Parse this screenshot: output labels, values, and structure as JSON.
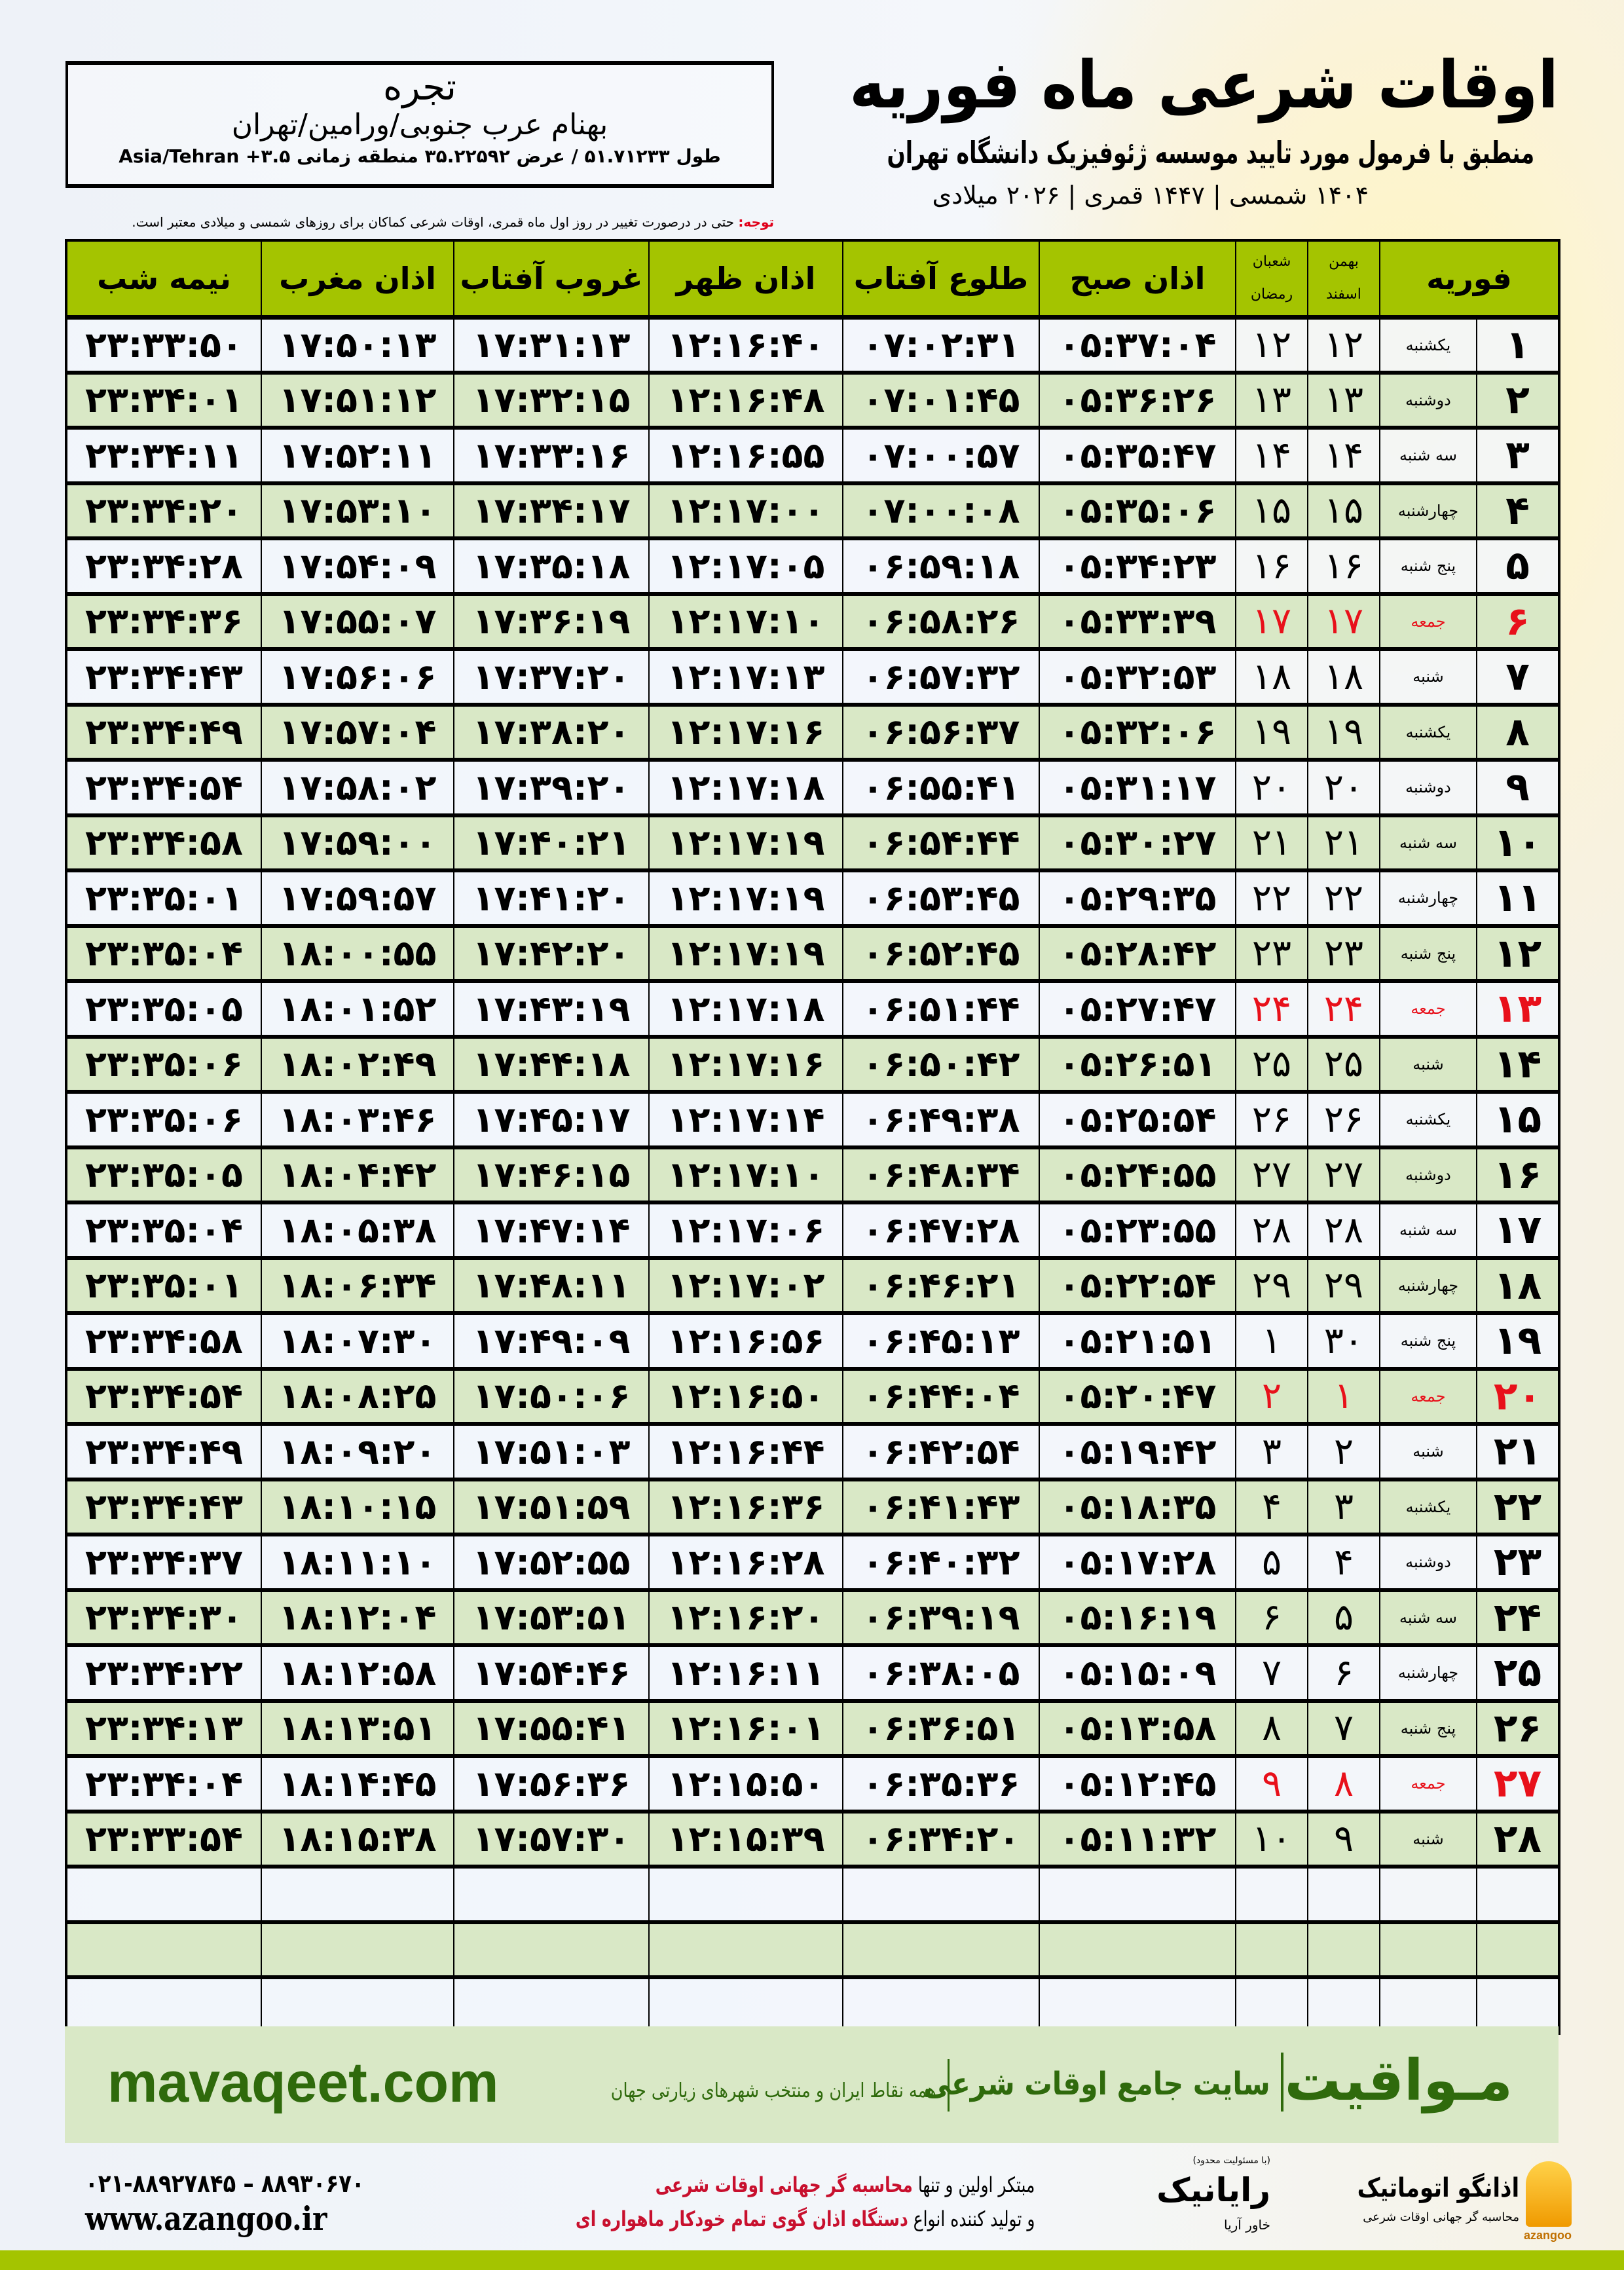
{
  "header": {
    "title": "اوقات شرعی ماه فوریه",
    "subtitle": "منطبق با فرمول مورد تایید موسسه ژئوفیزیک دانشگاه تهران",
    "dateline": "۱۴۰۴ شمسی | ۱۴۴۷ قمری | ۲۰۲۶ میلادی"
  },
  "location": {
    "city": "تجره",
    "address": "بهنام عرب جنوبی/ورامین/تهران",
    "coords": "طول ۵۱.۷۱۲۳۳ / عرض ۳۵.۲۲۵۹۲ منطقه زمانی ۳.۵+ Asia/Tehran"
  },
  "note": {
    "label": "توجه:",
    "text": " حتی در درصورت تغییر در روز اول ماه قمری، اوقات شرعی کماکان برای روزهای شمسی و میلادی معتبر است."
  },
  "table": {
    "headers": {
      "month": "فوریه",
      "solar_1": "بهمن",
      "solar_2": "اسفند",
      "lunar_1": "شعبان",
      "lunar_2": "رمضان",
      "fajr": "اذان صبح",
      "sunrise": "طلوع آفتاب",
      "dhuhr": "اذان ظهر",
      "sunset": "غروب آفتاب",
      "maghrib": "اذان مغرب",
      "midnight": "نیمه شب"
    },
    "friday_color": "#e8101a",
    "rows": [
      {
        "date": "۱",
        "weekday": "یکشنبه",
        "solar": "۱۲",
        "lunar": "۱۲",
        "fajr": "۰۵:۳۷:۰۴",
        "sunrise": "۰۷:۰۲:۳۱",
        "dhuhr": "۱۲:۱۶:۴۰",
        "sunset": "۱۷:۳۱:۱۳",
        "maghrib": "۱۷:۵۰:۱۳",
        "midnight": "۲۳:۳۳:۵۰",
        "friday": false
      },
      {
        "date": "۲",
        "weekday": "دوشنبه",
        "solar": "۱۳",
        "lunar": "۱۳",
        "fajr": "۰۵:۳۶:۲۶",
        "sunrise": "۰۷:۰۱:۴۵",
        "dhuhr": "۱۲:۱۶:۴۸",
        "sunset": "۱۷:۳۲:۱۵",
        "maghrib": "۱۷:۵۱:۱۲",
        "midnight": "۲۳:۳۴:۰۱",
        "friday": false
      },
      {
        "date": "۳",
        "weekday": "سه شنبه",
        "solar": "۱۴",
        "lunar": "۱۴",
        "fajr": "۰۵:۳۵:۴۷",
        "sunrise": "۰۷:۰۰:۵۷",
        "dhuhr": "۱۲:۱۶:۵۵",
        "sunset": "۱۷:۳۳:۱۶",
        "maghrib": "۱۷:۵۲:۱۱",
        "midnight": "۲۳:۳۴:۱۱",
        "friday": false
      },
      {
        "date": "۴",
        "weekday": "چهارشنبه",
        "solar": "۱۵",
        "lunar": "۱۵",
        "fajr": "۰۵:۳۵:۰۶",
        "sunrise": "۰۷:۰۰:۰۸",
        "dhuhr": "۱۲:۱۷:۰۰",
        "sunset": "۱۷:۳۴:۱۷",
        "maghrib": "۱۷:۵۳:۱۰",
        "midnight": "۲۳:۳۴:۲۰",
        "friday": false
      },
      {
        "date": "۵",
        "weekday": "پنج شنبه",
        "solar": "۱۶",
        "lunar": "۱۶",
        "fajr": "۰۵:۳۴:۲۳",
        "sunrise": "۰۶:۵۹:۱۸",
        "dhuhr": "۱۲:۱۷:۰۵",
        "sunset": "۱۷:۳۵:۱۸",
        "maghrib": "۱۷:۵۴:۰۹",
        "midnight": "۲۳:۳۴:۲۸",
        "friday": false
      },
      {
        "date": "۶",
        "weekday": "جمعه",
        "solar": "۱۷",
        "lunar": "۱۷",
        "fajr": "۰۵:۳۳:۳۹",
        "sunrise": "۰۶:۵۸:۲۶",
        "dhuhr": "۱۲:۱۷:۱۰",
        "sunset": "۱۷:۳۶:۱۹",
        "maghrib": "۱۷:۵۵:۰۷",
        "midnight": "۲۳:۳۴:۳۶",
        "friday": true
      },
      {
        "date": "۷",
        "weekday": "شنبه",
        "solar": "۱۸",
        "lunar": "۱۸",
        "fajr": "۰۵:۳۲:۵۳",
        "sunrise": "۰۶:۵۷:۳۲",
        "dhuhr": "۱۲:۱۷:۱۳",
        "sunset": "۱۷:۳۷:۲۰",
        "maghrib": "۱۷:۵۶:۰۶",
        "midnight": "۲۳:۳۴:۴۳",
        "friday": false
      },
      {
        "date": "۸",
        "weekday": "یکشنبه",
        "solar": "۱۹",
        "lunar": "۱۹",
        "fajr": "۰۵:۳۲:۰۶",
        "sunrise": "۰۶:۵۶:۳۷",
        "dhuhr": "۱۲:۱۷:۱۶",
        "sunset": "۱۷:۳۸:۲۰",
        "maghrib": "۱۷:۵۷:۰۴",
        "midnight": "۲۳:۳۴:۴۹",
        "friday": false
      },
      {
        "date": "۹",
        "weekday": "دوشنبه",
        "solar": "۲۰",
        "lunar": "۲۰",
        "fajr": "۰۵:۳۱:۱۷",
        "sunrise": "۰۶:۵۵:۴۱",
        "dhuhr": "۱۲:۱۷:۱۸",
        "sunset": "۱۷:۳۹:۲۰",
        "maghrib": "۱۷:۵۸:۰۲",
        "midnight": "۲۳:۳۴:۵۴",
        "friday": false
      },
      {
        "date": "۱۰",
        "weekday": "سه شنبه",
        "solar": "۲۱",
        "lunar": "۲۱",
        "fajr": "۰۵:۳۰:۲۷",
        "sunrise": "۰۶:۵۴:۴۴",
        "dhuhr": "۱۲:۱۷:۱۹",
        "sunset": "۱۷:۴۰:۲۱",
        "maghrib": "۱۷:۵۹:۰۰",
        "midnight": "۲۳:۳۴:۵۸",
        "friday": false
      },
      {
        "date": "۱۱",
        "weekday": "چهارشنبه",
        "solar": "۲۲",
        "lunar": "۲۲",
        "fajr": "۰۵:۲۹:۳۵",
        "sunrise": "۰۶:۵۳:۴۵",
        "dhuhr": "۱۲:۱۷:۱۹",
        "sunset": "۱۷:۴۱:۲۰",
        "maghrib": "۱۷:۵۹:۵۷",
        "midnight": "۲۳:۳۵:۰۱",
        "friday": false
      },
      {
        "date": "۱۲",
        "weekday": "پنج شنبه",
        "solar": "۲۳",
        "lunar": "۲۳",
        "fajr": "۰۵:۲۸:۴۲",
        "sunrise": "۰۶:۵۲:۴۵",
        "dhuhr": "۱۲:۱۷:۱۹",
        "sunset": "۱۷:۴۲:۲۰",
        "maghrib": "۱۸:۰۰:۵۵",
        "midnight": "۲۳:۳۵:۰۴",
        "friday": false
      },
      {
        "date": "۱۳",
        "weekday": "جمعه",
        "solar": "۲۴",
        "lunar": "۲۴",
        "fajr": "۰۵:۲۷:۴۷",
        "sunrise": "۰۶:۵۱:۴۴",
        "dhuhr": "۱۲:۱۷:۱۸",
        "sunset": "۱۷:۴۳:۱۹",
        "maghrib": "۱۸:۰۱:۵۲",
        "midnight": "۲۳:۳۵:۰۵",
        "friday": true
      },
      {
        "date": "۱۴",
        "weekday": "شنبه",
        "solar": "۲۵",
        "lunar": "۲۵",
        "fajr": "۰۵:۲۶:۵۱",
        "sunrise": "۰۶:۵۰:۴۲",
        "dhuhr": "۱۲:۱۷:۱۶",
        "sunset": "۱۷:۴۴:۱۸",
        "maghrib": "۱۸:۰۲:۴۹",
        "midnight": "۲۳:۳۵:۰۶",
        "friday": false
      },
      {
        "date": "۱۵",
        "weekday": "یکشنبه",
        "solar": "۲۶",
        "lunar": "۲۶",
        "fajr": "۰۵:۲۵:۵۴",
        "sunrise": "۰۶:۴۹:۳۸",
        "dhuhr": "۱۲:۱۷:۱۴",
        "sunset": "۱۷:۴۵:۱۷",
        "maghrib": "۱۸:۰۳:۴۶",
        "midnight": "۲۳:۳۵:۰۶",
        "friday": false
      },
      {
        "date": "۱۶",
        "weekday": "دوشنبه",
        "solar": "۲۷",
        "lunar": "۲۷",
        "fajr": "۰۵:۲۴:۵۵",
        "sunrise": "۰۶:۴۸:۳۴",
        "dhuhr": "۱۲:۱۷:۱۰",
        "sunset": "۱۷:۴۶:۱۵",
        "maghrib": "۱۸:۰۴:۴۲",
        "midnight": "۲۳:۳۵:۰۵",
        "friday": false
      },
      {
        "date": "۱۷",
        "weekday": "سه شنبه",
        "solar": "۲۸",
        "lunar": "۲۸",
        "fajr": "۰۵:۲۳:۵۵",
        "sunrise": "۰۶:۴۷:۲۸",
        "dhuhr": "۱۲:۱۷:۰۶",
        "sunset": "۱۷:۴۷:۱۴",
        "maghrib": "۱۸:۰۵:۳۸",
        "midnight": "۲۳:۳۵:۰۴",
        "friday": false
      },
      {
        "date": "۱۸",
        "weekday": "چهارشنبه",
        "solar": "۲۹",
        "lunar": "۲۹",
        "fajr": "۰۵:۲۲:۵۴",
        "sunrise": "۰۶:۴۶:۲۱",
        "dhuhr": "۱۲:۱۷:۰۲",
        "sunset": "۱۷:۴۸:۱۱",
        "maghrib": "۱۸:۰۶:۳۴",
        "midnight": "۲۳:۳۵:۰۱",
        "friday": false
      },
      {
        "date": "۱۹",
        "weekday": "پنج شنبه",
        "solar": "۳۰",
        "lunar": "۱",
        "fajr": "۰۵:۲۱:۵۱",
        "sunrise": "۰۶:۴۵:۱۳",
        "dhuhr": "۱۲:۱۶:۵۶",
        "sunset": "۱۷:۴۹:۰۹",
        "maghrib": "۱۸:۰۷:۳۰",
        "midnight": "۲۳:۳۴:۵۸",
        "friday": false
      },
      {
        "date": "۲۰",
        "weekday": "جمعه",
        "solar": "۱",
        "lunar": "۲",
        "fajr": "۰۵:۲۰:۴۷",
        "sunrise": "۰۶:۴۴:۰۴",
        "dhuhr": "۱۲:۱۶:۵۰",
        "sunset": "۱۷:۵۰:۰۶",
        "maghrib": "۱۸:۰۸:۲۵",
        "midnight": "۲۳:۳۴:۵۴",
        "friday": true
      },
      {
        "date": "۲۱",
        "weekday": "شنبه",
        "solar": "۲",
        "lunar": "۳",
        "fajr": "۰۵:۱۹:۴۲",
        "sunrise": "۰۶:۴۲:۵۴",
        "dhuhr": "۱۲:۱۶:۴۴",
        "sunset": "۱۷:۵۱:۰۳",
        "maghrib": "۱۸:۰۹:۲۰",
        "midnight": "۲۳:۳۴:۴۹",
        "friday": false
      },
      {
        "date": "۲۲",
        "weekday": "یکشنبه",
        "solar": "۳",
        "lunar": "۴",
        "fajr": "۰۵:۱۸:۳۵",
        "sunrise": "۰۶:۴۱:۴۳",
        "dhuhr": "۱۲:۱۶:۳۶",
        "sunset": "۱۷:۵۱:۵۹",
        "maghrib": "۱۸:۱۰:۱۵",
        "midnight": "۲۳:۳۴:۴۳",
        "friday": false
      },
      {
        "date": "۲۳",
        "weekday": "دوشنبه",
        "solar": "۴",
        "lunar": "۵",
        "fajr": "۰۵:۱۷:۲۸",
        "sunrise": "۰۶:۴۰:۳۲",
        "dhuhr": "۱۲:۱۶:۲۸",
        "sunset": "۱۷:۵۲:۵۵",
        "maghrib": "۱۸:۱۱:۱۰",
        "midnight": "۲۳:۳۴:۳۷",
        "friday": false
      },
      {
        "date": "۲۴",
        "weekday": "سه شنبه",
        "solar": "۵",
        "lunar": "۶",
        "fajr": "۰۵:۱۶:۱۹",
        "sunrise": "۰۶:۳۹:۱۹",
        "dhuhr": "۱۲:۱۶:۲۰",
        "sunset": "۱۷:۵۳:۵۱",
        "maghrib": "۱۸:۱۲:۰۴",
        "midnight": "۲۳:۳۴:۳۰",
        "friday": false
      },
      {
        "date": "۲۵",
        "weekday": "چهارشنبه",
        "solar": "۶",
        "lunar": "۷",
        "fajr": "۰۵:۱۵:۰۹",
        "sunrise": "۰۶:۳۸:۰۵",
        "dhuhr": "۱۲:۱۶:۱۱",
        "sunset": "۱۷:۵۴:۴۶",
        "maghrib": "۱۸:۱۲:۵۸",
        "midnight": "۲۳:۳۴:۲۲",
        "friday": false
      },
      {
        "date": "۲۶",
        "weekday": "پنج شنبه",
        "solar": "۷",
        "lunar": "۸",
        "fajr": "۰۵:۱۳:۵۸",
        "sunrise": "۰۶:۳۶:۵۱",
        "dhuhr": "۱۲:۱۶:۰۱",
        "sunset": "۱۷:۵۵:۴۱",
        "maghrib": "۱۸:۱۳:۵۱",
        "midnight": "۲۳:۳۴:۱۳",
        "friday": false
      },
      {
        "date": "۲۷",
        "weekday": "جمعه",
        "solar": "۸",
        "lunar": "۹",
        "fajr": "۰۵:۱۲:۴۵",
        "sunrise": "۰۶:۳۵:۳۶",
        "dhuhr": "۱۲:۱۵:۵۰",
        "sunset": "۱۷:۵۶:۳۶",
        "maghrib": "۱۸:۱۴:۴۵",
        "midnight": "۲۳:۳۴:۰۴",
        "friday": true
      },
      {
        "date": "۲۸",
        "weekday": "شنبه",
        "solar": "۹",
        "lunar": "۱۰",
        "fajr": "۰۵:۱۱:۳۲",
        "sunrise": "۰۶:۳۴:۲۰",
        "dhuhr": "۱۲:۱۵:۳۹",
        "sunset": "۱۷:۵۷:۳۰",
        "maghrib": "۱۸:۱۵:۳۸",
        "midnight": "۲۳:۳۳:۵۴",
        "friday": false
      }
    ]
  },
  "footer": {
    "brand": "مـواقیت",
    "tagline": "سایت جامع اوقات شرعی",
    "tagline_sub": "همه نقاط ایران و منتخب شهرهای زیارتی جهان",
    "site": "mavaqeet.com",
    "azangoo_name": "اذانگو اتوماتیک",
    "azangoo_sub": "محاسبه گر جهانی اوقات شرعی",
    "azangoo_en": "azangoo",
    "rayanik_ltd": "(با مسئولیت محدود)",
    "rayanik_name": "رایانیک",
    "rayanik_sub": "خاور آریا",
    "slogan_1a": "مبتکر اولین و تنها ",
    "slogan_1b": "محاسبه گر جهانی اوقات شرعی",
    "slogan_2a": "و تولید کننده انواع ",
    "slogan_2b": "دستگاه اذان گوی تمام خودکار ماهواره ای",
    "phones": "۰۲۱-۸۸۹۲۷۸۴۵ – ۸۸۹۳۰۶۷۰",
    "web": "www.azangoo.ir",
    "accent_color": "#2f6a0c"
  }
}
